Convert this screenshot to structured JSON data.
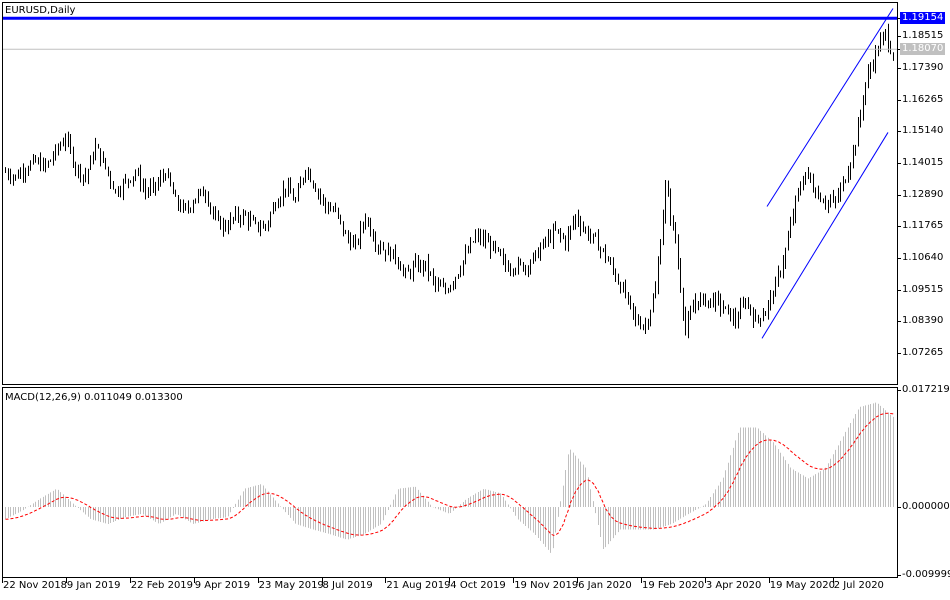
{
  "window": {
    "title": "EURUSD,Daily"
  },
  "indicator": {
    "label": "MACD(12,26,9) 0.011049 0.013300",
    "name": "MACD(12,26,9)",
    "main": 0.011049,
    "signal": 0.0133
  },
  "colors": {
    "bars": "#000000",
    "level_line": "#0000ff",
    "channel": "#0000ff",
    "bid_line": "#c0c0c0",
    "histogram": "#c0c0c0",
    "signal": "#ff0000",
    "level_label_bg": "#0000ff",
    "bid_label_bg": "#c0c0c0"
  },
  "chart_data": [
    {
      "type": "ohlc",
      "title": "EURUSD,Daily",
      "y_ticks": [
        "1.18515",
        "1.17390",
        "1.16265",
        "1.15140",
        "1.14015",
        "1.12890",
        "1.11765",
        "1.10640",
        "1.09515",
        "1.08390",
        "1.07265"
      ],
      "ylim": [
        1.0617,
        1.1973
      ],
      "x_ticks": [
        "22 Nov 2018",
        "9 Jan 2019",
        "22 Feb 2019",
        "9 Apr 2019",
        "23 May 2019",
        "8 Jul 2019",
        "21 Aug 2019",
        "4 Oct 2019",
        "19 Nov 2019",
        "6 Jan 2020",
        "19 Feb 2020",
        "3 Apr 2020",
        "19 May 2020",
        "2 Jul 2020"
      ],
      "horizontal_level": {
        "value": 1.19154,
        "label": "1.19154"
      },
      "bid_line": {
        "value": 1.1807,
        "label": "1.18070"
      },
      "channel": {
        "upper": [
          1.1247,
          1.195
        ],
        "lower": [
          1.0779,
          1.151
        ]
      },
      "closes_approx": [
        1.137,
        1.1352,
        1.1387,
        1.1405,
        1.1387,
        1.144,
        1.1493,
        1.1387,
        1.1352,
        1.1458,
        1.1387,
        1.13,
        1.1335,
        1.137,
        1.13,
        1.1317,
        1.137,
        1.1264,
        1.1229,
        1.1282,
        1.13,
        1.1194,
        1.1176,
        1.1212,
        1.1212,
        1.1176,
        1.1176,
        1.1264,
        1.1317,
        1.1264,
        1.1387,
        1.1317,
        1.1247,
        1.1229,
        1.1141,
        1.1106,
        1.1212,
        1.1124,
        1.1089,
        1.1071,
        1.1001,
        1.1036,
        1.1036,
        1.0965,
        1.0948,
        1.1001,
        1.1071,
        1.1141,
        1.1124,
        1.1089,
        1.1036,
        1.1036,
        1.1036,
        1.1071,
        1.1124,
        1.1159,
        1.1124,
        1.1212,
        1.1159,
        1.1124,
        1.1071,
        1.1001,
        1.093,
        1.0842,
        1.0825,
        1.0948,
        1.1317,
        1.1124,
        1.0807,
        1.0913,
        1.0913,
        1.0913,
        1.0878,
        1.0842,
        1.0913,
        1.0842,
        1.0878,
        1.0965,
        1.1089,
        1.1264,
        1.137,
        1.13,
        1.1264,
        1.1264,
        1.1352,
        1.1475,
        1.1686,
        1.1792,
        1.1862,
        1.1757
      ]
    },
    {
      "type": "bar",
      "title": "MACD(12,26,9) 0.011049 0.013300",
      "y_ticks": [
        "0.017219",
        "0.000000",
        "-0.009999"
      ],
      "ylim": [
        -0.009999,
        0.017219
      ],
      "macd_approx": [
        -0.0018,
        -0.0005,
        0.0012,
        0.0027,
        0.0004,
        -0.0018,
        -0.0025,
        -0.0015,
        -0.001,
        -0.0025,
        -0.001,
        -0.0025,
        -0.0018,
        -0.0015,
        0.0027,
        0.0034,
        0.0004,
        -0.0025,
        -0.0033,
        -0.004,
        -0.0048,
        -0.004,
        -0.0025,
        0.0027,
        0.003,
        0.0,
        -0.001,
        0.0012,
        0.0027,
        0.002,
        -0.0018,
        -0.004,
        -0.007,
        0.0087,
        0.0057,
        -0.0063,
        -0.0033,
        -0.0033,
        -0.0033,
        -0.0025,
        -0.001,
        0.0004,
        0.0042,
        0.0117,
        0.0117,
        0.0094,
        0.0057,
        0.0042,
        0.0057,
        0.0102,
        0.0147,
        0.0154,
        0.0132
      ]
    }
  ]
}
